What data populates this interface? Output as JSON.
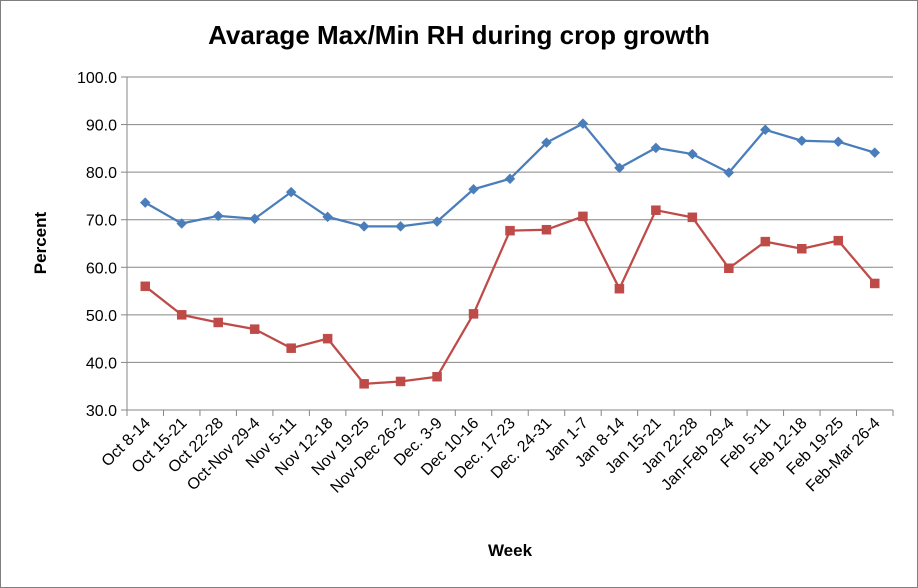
{
  "chart_data": {
    "type": "line",
    "title": "Avarage Max/Min RH during crop growth",
    "xlabel": "Week",
    "ylabel": "Percent",
    "ylim": [
      30,
      100
    ],
    "y_ticks": [
      "30.0",
      "40.0",
      "50.0",
      "60.0",
      "70.0",
      "80.0",
      "90.0",
      "100.0"
    ],
    "grid": "horizontal",
    "legend": "none",
    "categories": [
      "Oct 8-14",
      "Oct 15-21",
      "Oct 22-28",
      "Oct-Nov 29-4",
      "Nov 5-11",
      "Nov 12-18",
      "Nov 19-25",
      "Nov-Dec 26-2",
      "Dec. 3-9",
      "Dec 10-16",
      "Dec. 17-23",
      "Dec. 24-31",
      "Jan 1-7",
      "Jan 8-14",
      "Jan 15-21",
      "Jan 22-28",
      "Jan-Feb 29-4",
      "Feb 5-11",
      "Feb 12-18",
      "Feb 19-25",
      "Feb-Mar 26-4"
    ],
    "series": [
      {
        "color": "#4a7ebb",
        "marker": "diamond",
        "values": [
          73.6,
          69.2,
          70.8,
          70.2,
          75.8,
          70.6,
          68.6,
          68.6,
          69.6,
          76.4,
          78.6,
          86.2,
          90.2,
          80.9,
          85.1,
          83.8,
          79.9,
          88.9,
          86.6,
          86.4,
          84.1
        ]
      },
      {
        "color": "#be4b48",
        "marker": "square",
        "values": [
          56.0,
          50.0,
          48.4,
          47.0,
          43.0,
          45.0,
          35.5,
          36.0,
          37.0,
          50.2,
          67.7,
          67.9,
          70.7,
          55.5,
          72.0,
          70.5,
          59.8,
          65.4,
          63.9,
          65.6,
          56.6
        ]
      }
    ]
  }
}
